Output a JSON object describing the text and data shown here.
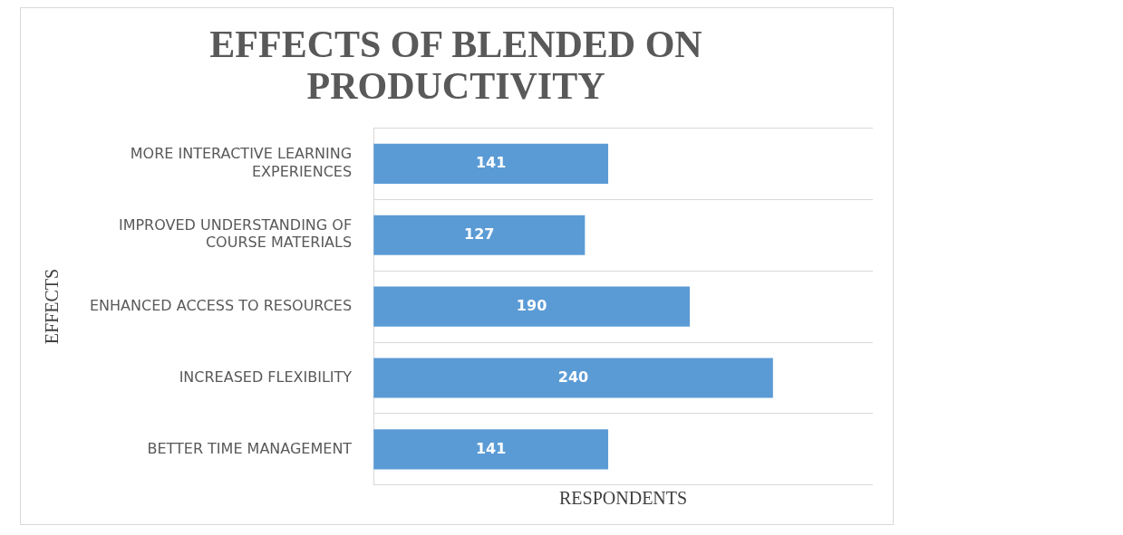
{
  "chart_data": {
    "type": "bar",
    "orientation": "horizontal",
    "title": "EFFECTS OF BLENDED ON PRODUCTIVITY",
    "xlabel": "RESPONDENTS",
    "ylabel": "EFFECTS",
    "categories": [
      "MORE INTERACTIVE LEARNING EXPERIENCES",
      "IMPROVED UNDERSTANDING OF COURSE MATERIALS",
      "ENHANCED ACCESS TO RESOURCES",
      "INCREASED FLEXIBILITY",
      "BETTER TIME MANAGEMENT"
    ],
    "values": [
      141,
      127,
      190,
      240,
      141
    ],
    "color": "#5b9bd5",
    "data_labels": true,
    "xlim": [
      0,
      300
    ],
    "tick_labels": "y",
    "grid": "y",
    "legend": false
  }
}
